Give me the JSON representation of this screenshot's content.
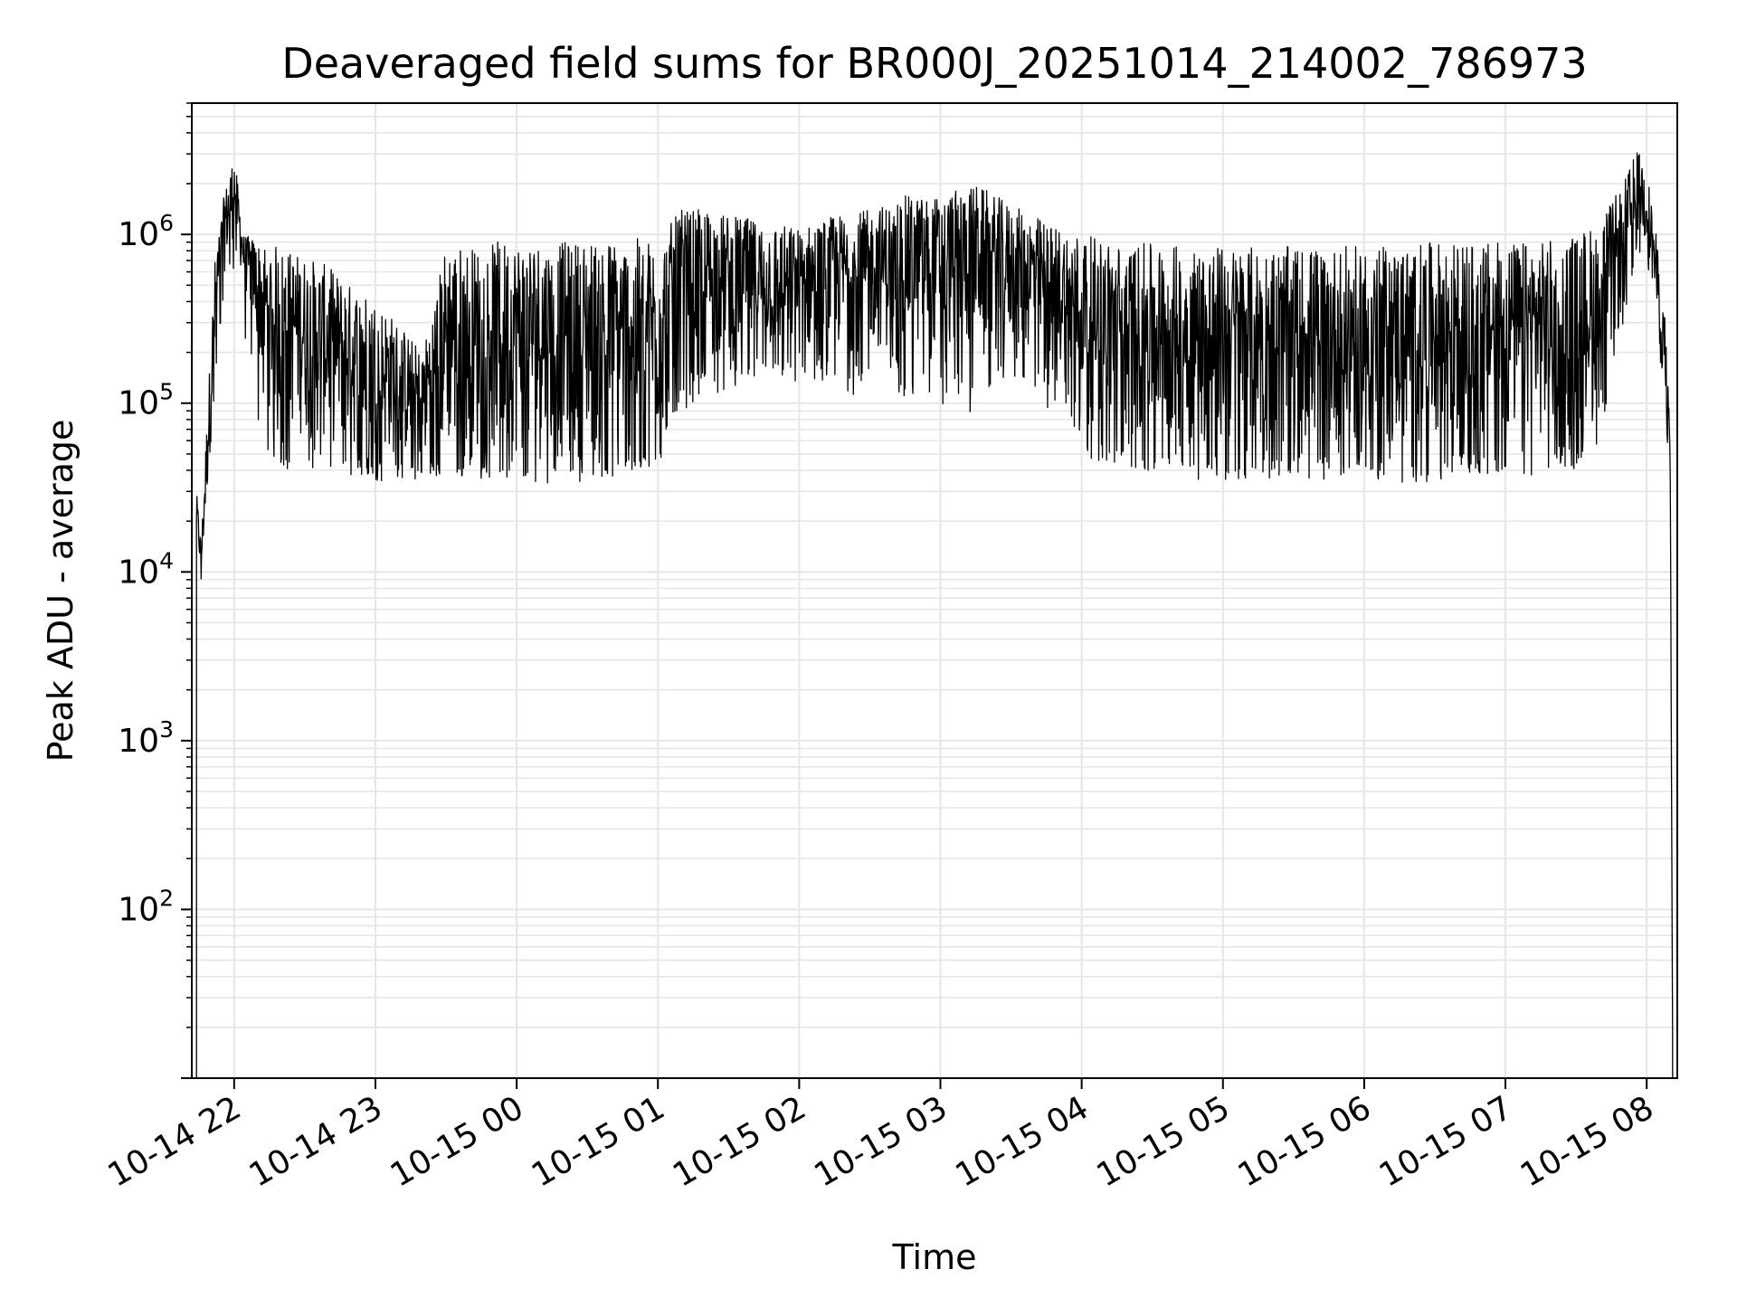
{
  "chart_data": {
    "type": "line",
    "title": "Deaveraged field sums for BR000J_20251014_214002_786973",
    "xlabel": "Time",
    "ylabel": "Peak ADU - average",
    "yscale": "log",
    "ylim": [
      10,
      6000000
    ],
    "xlim": [
      "2025-10-14 21:42",
      "2025-10-15 08:13"
    ],
    "grid": true,
    "line_color": "#000000",
    "grid_color": "#e6e6e6",
    "x_ticks": [
      {
        "label": "10-14 22",
        "time": "2025-10-14 22:00"
      },
      {
        "label": "10-14 23",
        "time": "2025-10-14 23:00"
      },
      {
        "label": "10-15 00",
        "time": "2025-10-15 00:00"
      },
      {
        "label": "10-15 01",
        "time": "2025-10-15 01:00"
      },
      {
        "label": "10-15 02",
        "time": "2025-10-15 02:00"
      },
      {
        "label": "10-15 03",
        "time": "2025-10-15 03:00"
      },
      {
        "label": "10-15 04",
        "time": "2025-10-15 04:00"
      },
      {
        "label": "10-15 05",
        "time": "2025-10-15 05:00"
      },
      {
        "label": "10-15 06",
        "time": "2025-10-15 06:00"
      },
      {
        "label": "10-15 07",
        "time": "2025-10-15 07:00"
      },
      {
        "label": "10-15 08",
        "time": "2025-10-15 08:00"
      }
    ],
    "y_ticks": [
      {
        "base": "10",
        "exp": "2",
        "value": 100
      },
      {
        "base": "10",
        "exp": "3",
        "value": 1000
      },
      {
        "base": "10",
        "exp": "4",
        "value": 10000
      },
      {
        "base": "10",
        "exp": "5",
        "value": 100000
      },
      {
        "base": "10",
        "exp": "6",
        "value": 1000000
      }
    ],
    "series": [
      {
        "envelope": {
          "x": [
            "2025-10-14 21:44",
            "2025-10-14 21:46",
            "2025-10-14 21:48",
            "2025-10-14 21:52",
            "2025-10-14 21:56",
            "2025-10-14 22:00",
            "2025-10-14 22:04",
            "2025-10-14 22:08",
            "2025-10-14 22:12",
            "2025-10-14 22:20",
            "2025-10-14 22:30",
            "2025-10-14 22:40",
            "2025-10-14 22:50",
            "2025-10-14 23:00",
            "2025-10-14 23:10",
            "2025-10-14 23:20",
            "2025-10-14 23:30",
            "2025-10-14 23:40",
            "2025-10-14 23:50",
            "2025-10-15 00:00",
            "2025-10-15 00:10",
            "2025-10-15 00:20",
            "2025-10-15 00:30",
            "2025-10-15 00:40",
            "2025-10-15 00:50",
            "2025-10-15 01:00",
            "2025-10-15 01:10",
            "2025-10-15 01:20",
            "2025-10-15 01:30",
            "2025-10-15 01:45",
            "2025-10-15 02:00",
            "2025-10-15 02:15",
            "2025-10-15 02:30",
            "2025-10-15 02:45",
            "2025-10-15 03:00",
            "2025-10-15 03:15",
            "2025-10-15 03:30",
            "2025-10-15 03:45",
            "2025-10-15 04:00",
            "2025-10-15 04:15",
            "2025-10-15 04:30",
            "2025-10-15 04:45",
            "2025-10-15 05:00",
            "2025-10-15 05:15",
            "2025-10-15 05:30",
            "2025-10-15 05:45",
            "2025-10-15 06:00",
            "2025-10-15 06:15",
            "2025-10-15 06:30",
            "2025-10-15 06:45",
            "2025-10-15 07:00",
            "2025-10-15 07:15",
            "2025-10-15 07:30",
            "2025-10-15 07:40",
            "2025-10-15 07:50",
            "2025-10-15 07:56",
            "2025-10-15 08:00",
            "2025-10-15 08:04",
            "2025-10-15 08:08",
            "2025-10-15 08:10",
            "2025-10-15 08:11"
          ],
          "upper": [
            30000,
            15000,
            60000,
            800000,
            1800000,
            3000000,
            1000000,
            950000,
            900000,
            850000,
            750000,
            650000,
            500000,
            420000,
            300000,
            200000,
            900000,
            850000,
            900000,
            950000,
            950000,
            900000,
            950000,
            950000,
            950000,
            950000,
            1400000,
            1400000,
            1300000,
            1200000,
            1100000,
            1300000,
            1400000,
            1700000,
            1700000,
            2000000,
            1500000,
            1200000,
            1000000,
            900000,
            880000,
            860000,
            850000,
            850000,
            850000,
            850000,
            850000,
            850000,
            900000,
            900000,
            900000,
            900000,
            1000000,
            1200000,
            2000000,
            3200000,
            2500000,
            1000000,
            300000,
            60000,
            20
          ],
          "lower": [
            15000,
            9000,
            20000,
            150000,
            600000,
            1000000,
            500000,
            300000,
            120000,
            70000,
            60000,
            55000,
            50000,
            48000,
            45000,
            42000,
            45000,
            44000,
            43000,
            44000,
            43000,
            42000,
            44000,
            45000,
            48000,
            50000,
            150000,
            160000,
            170000,
            180000,
            180000,
            190000,
            200000,
            200000,
            190000,
            200000,
            200000,
            180000,
            100000,
            60000,
            55000,
            50000,
            50000,
            48000,
            48000,
            48000,
            48000,
            48000,
            50000,
            50000,
            52000,
            55000,
            60000,
            100000,
            300000,
            900000,
            800000,
            300000,
            100000,
            30000,
            10
          ],
          "spike_min": [
            15000,
            9000,
            20000,
            150000,
            500000,
            600000,
            200000,
            60000,
            50000,
            40000,
            40000,
            38000,
            36000,
            34000,
            36000,
            35000,
            38000,
            36000,
            35000,
            35000,
            34000,
            33000,
            35000,
            36000,
            40000,
            42000,
            90000,
            110000,
            120000,
            130000,
            130000,
            120000,
            100000,
            110000,
            90000,
            85000,
            150000,
            90000,
            50000,
            40000,
            38000,
            36000,
            34000,
            36000,
            36000,
            35000,
            35000,
            32000,
            35000,
            38000,
            36000,
            38000,
            40000,
            60000,
            300000,
            800000,
            700000,
            250000,
            80000,
            25000,
            10
          ]
        }
      }
    ]
  }
}
